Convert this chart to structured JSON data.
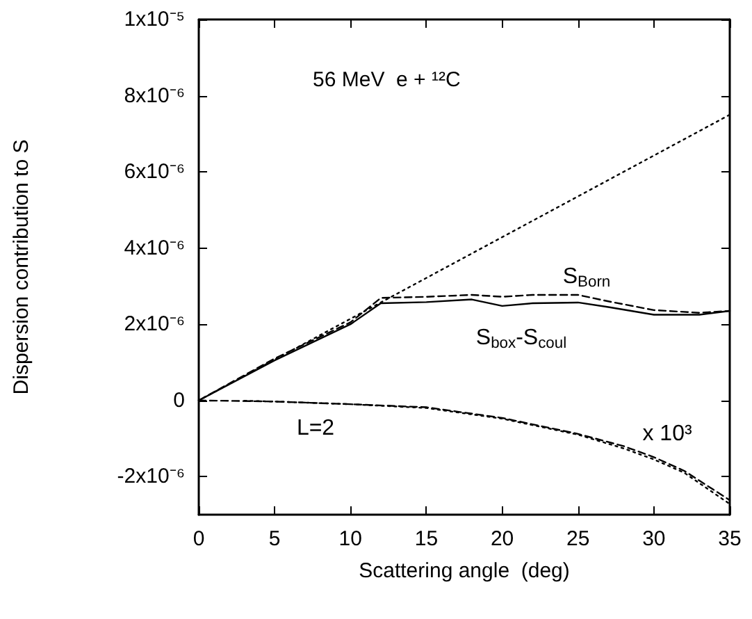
{
  "chart_data": {
    "type": "line",
    "title": "56 MeV  e + ¹²C",
    "xlabel": "Scattering angle  (deg)",
    "ylabel": "Dispersion contribution to S",
    "xlim": [
      0,
      35
    ],
    "xticks": [
      0,
      5,
      10,
      15,
      20,
      25,
      30,
      35
    ],
    "ylim": [
      -3e-06,
      1e-05
    ],
    "yticks": [
      {
        "value": -2e-06,
        "label": "-2x10⁻⁶"
      },
      {
        "value": 0,
        "label": "0"
      },
      {
        "value": 2e-06,
        "label": "2x10⁻⁶"
      },
      {
        "value": 4e-06,
        "label": "4x10⁻⁶"
      },
      {
        "value": 6e-06,
        "label": "6x10⁻⁶"
      },
      {
        "value": 8e-06,
        "label": "8x10⁻⁶"
      },
      {
        "value": 1e-05,
        "label": "1x10⁻⁵"
      }
    ],
    "grid": false,
    "marker": "none",
    "series": [
      {
        "color": "#000000",
        "line_style": "dotted",
        "x": [
          0,
          35
        ],
        "values": [
          0,
          7.5e-06
        ]
      },
      {
        "color": "#000000",
        "line_style": "dashed",
        "x": [
          0,
          5,
          10,
          12,
          15,
          18,
          20,
          22,
          25,
          27,
          30,
          33,
          35
        ],
        "values": [
          0,
          1.1e-06,
          2.05e-06,
          2.69e-06,
          2.72e-06,
          2.77e-06,
          2.72e-06,
          2.77e-06,
          2.77e-06,
          2.6e-06,
          2.37e-06,
          2.3e-06,
          2.35e-06
        ]
      },
      {
        "color": "#000000",
        "line_style": "solid",
        "x": [
          0,
          5,
          10,
          12,
          15,
          18,
          20,
          22,
          25,
          27,
          30,
          33,
          35
        ],
        "values": [
          0,
          1.05e-06,
          2e-06,
          2.55e-06,
          2.58e-06,
          2.65e-06,
          2.48e-06,
          2.55e-06,
          2.57e-06,
          2.45e-06,
          2.25e-06,
          2.25e-06,
          2.35e-06
        ]
      },
      {
        "color": "#000000",
        "line_style": "dashed",
        "x": [
          0,
          5,
          10,
          15,
          20,
          25,
          28,
          30,
          32,
          35
        ],
        "values": [
          0,
          -3e-08,
          -1e-07,
          -1.8e-07,
          -4.6e-07,
          -8.8e-07,
          -1.2e-06,
          -1.49e-06,
          -1.85e-06,
          -2.62e-06
        ]
      },
      {
        "color": "#000000",
        "line_style": "dotted",
        "x": [
          3,
          5,
          10,
          15,
          20,
          25,
          28,
          30,
          32,
          35
        ],
        "values": [
          -1e-08,
          -3e-08,
          -1e-07,
          -2e-07,
          -4.8e-07,
          -9e-07,
          -1.26e-06,
          -1.55e-06,
          -1.9e-06,
          -2.72e-06
        ]
      }
    ],
    "annotations": [
      "S$_{Born}$",
      "S$_{box}$-S$_{coul}$",
      "L=2",
      "x 10³"
    ]
  }
}
